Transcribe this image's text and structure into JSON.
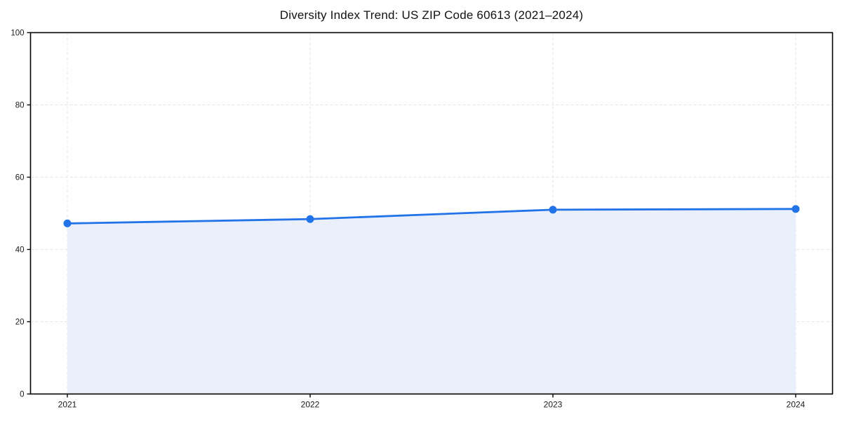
{
  "page": {
    "background": "#ffffff"
  },
  "chart_data": {
    "type": "area",
    "title": "Diversity Index Trend: US ZIP Code 60613 (2021–2024)",
    "categories": [
      "2021",
      "2022",
      "2023",
      "2024"
    ],
    "series": [
      {
        "name": "Diversity Index",
        "values": [
          47.2,
          48.4,
          51.0,
          51.2
        ]
      }
    ],
    "xlabel": "",
    "ylabel": "",
    "ylim": [
      0,
      100
    ],
    "y_ticks": [
      0,
      20,
      40,
      60,
      80,
      100
    ],
    "grid": true,
    "grid_style": "dashed",
    "legend": "none",
    "marker": "circle",
    "colors": {
      "line": "#2272e8",
      "marker": "#2272e8",
      "fill": "#e9f0fc",
      "grid": "#e3e3e3",
      "axis": "#000000",
      "text": "#1a1a1a",
      "background": "#ffffff"
    }
  }
}
